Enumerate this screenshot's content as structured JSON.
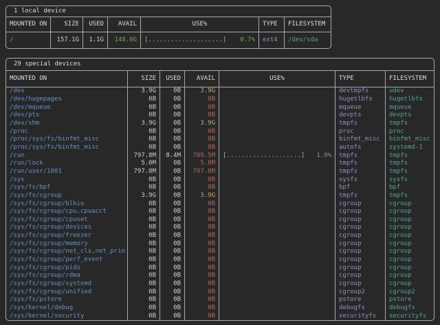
{
  "colors": {
    "background": "#282828",
    "border": "#a9a9a9",
    "text": "#dedede",
    "value": "#cfcfcf",
    "mount_blue": "#6591cd",
    "avail_green": "#74a465",
    "avail_yellow": "#cfa964",
    "avail_red": "#bb6363",
    "type_purple": "#9a8bc6",
    "filesystem_teal": "#54a29a",
    "bar_gray": "#a9a9a9",
    "percent_green": "#74a465"
  },
  "tables": [
    {
      "title": "1 local device",
      "headers": [
        "MOUNTED ON",
        "SIZE",
        "USED",
        "AVAIL",
        "USE%",
        "TYPE",
        "FILESYSTEM"
      ],
      "rows": [
        {
          "m": "/",
          "s": "157.1G",
          "u": "1.1G",
          "a": "148.0G",
          "ac": "green",
          "bar": "[....................]",
          "pct": "0.7%",
          "t": "ext4",
          "f": "/dev/sda"
        }
      ]
    },
    {
      "title": "29 special devices",
      "headers": [
        "MOUNTED ON",
        "SIZE",
        "USED",
        "AVAIL",
        "USE%",
        "TYPE",
        "FILESYSTEM"
      ],
      "rows": [
        {
          "m": "/dev",
          "s": "3.9G",
          "u": "0B",
          "a": "3.9G",
          "ac": "yellow",
          "bar": "",
          "pct": "",
          "t": "devtmpfs",
          "f": "udev"
        },
        {
          "m": "/dev/hugepages",
          "s": "0B",
          "u": "0B",
          "a": "0B",
          "ac": "red",
          "bar": "",
          "pct": "",
          "t": "hugetlbfs",
          "f": "hugetlbfs"
        },
        {
          "m": "/dev/mqueue",
          "s": "0B",
          "u": "0B",
          "a": "0B",
          "ac": "red",
          "bar": "",
          "pct": "",
          "t": "mqueue",
          "f": "mqueue"
        },
        {
          "m": "/dev/pts",
          "s": "0B",
          "u": "0B",
          "a": "0B",
          "ac": "red",
          "bar": "",
          "pct": "",
          "t": "devpts",
          "f": "devpts"
        },
        {
          "m": "/dev/shm",
          "s": "3.9G",
          "u": "0B",
          "a": "3.9G",
          "ac": "yellow",
          "bar": "",
          "pct": "",
          "t": "tmpfs",
          "f": "tmpfs"
        },
        {
          "m": "/proc",
          "s": "0B",
          "u": "0B",
          "a": "0B",
          "ac": "red",
          "bar": "",
          "pct": "",
          "t": "proc",
          "f": "proc"
        },
        {
          "m": "/proc/sys/fs/binfmt_misc",
          "s": "0B",
          "u": "0B",
          "a": "0B",
          "ac": "red",
          "bar": "",
          "pct": "",
          "t": "binfmt_misc",
          "f": "binfmt_misc"
        },
        {
          "m": "/proc/sys/fs/binfmt_misc",
          "s": "0B",
          "u": "0B",
          "a": "0B",
          "ac": "red",
          "bar": "",
          "pct": "",
          "t": "autofs",
          "f": "systemd-1"
        },
        {
          "m": "/run",
          "s": "797.8M",
          "u": "8.4M",
          "a": "789.5M",
          "ac": "red",
          "bar": "[....................]",
          "pct": "1.0%",
          "t": "tmpfs",
          "f": "tmpfs"
        },
        {
          "m": "/run/lock",
          "s": "5.0M",
          "u": "0B",
          "a": "5.0M",
          "ac": "red",
          "bar": "",
          "pct": "",
          "t": "tmpfs",
          "f": "tmpfs"
        },
        {
          "m": "/run/user/1001",
          "s": "797.8M",
          "u": "0B",
          "a": "797.8M",
          "ac": "red",
          "bar": "",
          "pct": "",
          "t": "tmpfs",
          "f": "tmpfs"
        },
        {
          "m": "/sys",
          "s": "0B",
          "u": "0B",
          "a": "0B",
          "ac": "red",
          "bar": "",
          "pct": "",
          "t": "sysfs",
          "f": "sysfs"
        },
        {
          "m": "/sys/fs/bpf",
          "s": "0B",
          "u": "0B",
          "a": "0B",
          "ac": "red",
          "bar": "",
          "pct": "",
          "t": "bpf",
          "f": "bpf"
        },
        {
          "m": "/sys/fs/cgroup",
          "s": "3.9G",
          "u": "0B",
          "a": "3.9G",
          "ac": "yellow",
          "bar": "",
          "pct": "",
          "t": "tmpfs",
          "f": "tmpfs"
        },
        {
          "m": "/sys/fs/cgroup/blkio",
          "s": "0B",
          "u": "0B",
          "a": "0B",
          "ac": "red",
          "bar": "",
          "pct": "",
          "t": "cgroup",
          "f": "cgroup"
        },
        {
          "m": "/sys/fs/cgroup/cpu,cpuacct",
          "s": "0B",
          "u": "0B",
          "a": "0B",
          "ac": "red",
          "bar": "",
          "pct": "",
          "t": "cgroup",
          "f": "cgroup"
        },
        {
          "m": "/sys/fs/cgroup/cpuset",
          "s": "0B",
          "u": "0B",
          "a": "0B",
          "ac": "red",
          "bar": "",
          "pct": "",
          "t": "cgroup",
          "f": "cgroup"
        },
        {
          "m": "/sys/fs/cgroup/devices",
          "s": "0B",
          "u": "0B",
          "a": "0B",
          "ac": "red",
          "bar": "",
          "pct": "",
          "t": "cgroup",
          "f": "cgroup"
        },
        {
          "m": "/sys/fs/cgroup/freezer",
          "s": "0B",
          "u": "0B",
          "a": "0B",
          "ac": "red",
          "bar": "",
          "pct": "",
          "t": "cgroup",
          "f": "cgroup"
        },
        {
          "m": "/sys/fs/cgroup/memory",
          "s": "0B",
          "u": "0B",
          "a": "0B",
          "ac": "red",
          "bar": "",
          "pct": "",
          "t": "cgroup",
          "f": "cgroup"
        },
        {
          "m": "/sys/fs/cgroup/net_cls,net_prio",
          "s": "0B",
          "u": "0B",
          "a": "0B",
          "ac": "red",
          "bar": "",
          "pct": "",
          "t": "cgroup",
          "f": "cgroup"
        },
        {
          "m": "/sys/fs/cgroup/perf_event",
          "s": "0B",
          "u": "0B",
          "a": "0B",
          "ac": "red",
          "bar": "",
          "pct": "",
          "t": "cgroup",
          "f": "cgroup"
        },
        {
          "m": "/sys/fs/cgroup/pids",
          "s": "0B",
          "u": "0B",
          "a": "0B",
          "ac": "red",
          "bar": "",
          "pct": "",
          "t": "cgroup",
          "f": "cgroup"
        },
        {
          "m": "/sys/fs/cgroup/rdma",
          "s": "0B",
          "u": "0B",
          "a": "0B",
          "ac": "red",
          "bar": "",
          "pct": "",
          "t": "cgroup",
          "f": "cgroup"
        },
        {
          "m": "/sys/fs/cgroup/systemd",
          "s": "0B",
          "u": "0B",
          "a": "0B",
          "ac": "red",
          "bar": "",
          "pct": "",
          "t": "cgroup",
          "f": "cgroup"
        },
        {
          "m": "/sys/fs/cgroup/unified",
          "s": "0B",
          "u": "0B",
          "a": "0B",
          "ac": "red",
          "bar": "",
          "pct": "",
          "t": "cgroup2",
          "f": "cgroup2"
        },
        {
          "m": "/sys/fs/pstore",
          "s": "0B",
          "u": "0B",
          "a": "0B",
          "ac": "red",
          "bar": "",
          "pct": "",
          "t": "pstore",
          "f": "pstore"
        },
        {
          "m": "/sys/kernel/debug",
          "s": "0B",
          "u": "0B",
          "a": "0B",
          "ac": "red",
          "bar": "",
          "pct": "",
          "t": "debugfs",
          "f": "debugfs"
        },
        {
          "m": "/sys/kernel/security",
          "s": "0B",
          "u": "0B",
          "a": "0B",
          "ac": "red",
          "bar": "",
          "pct": "",
          "t": "securityfs",
          "f": "securityfs"
        }
      ]
    }
  ]
}
